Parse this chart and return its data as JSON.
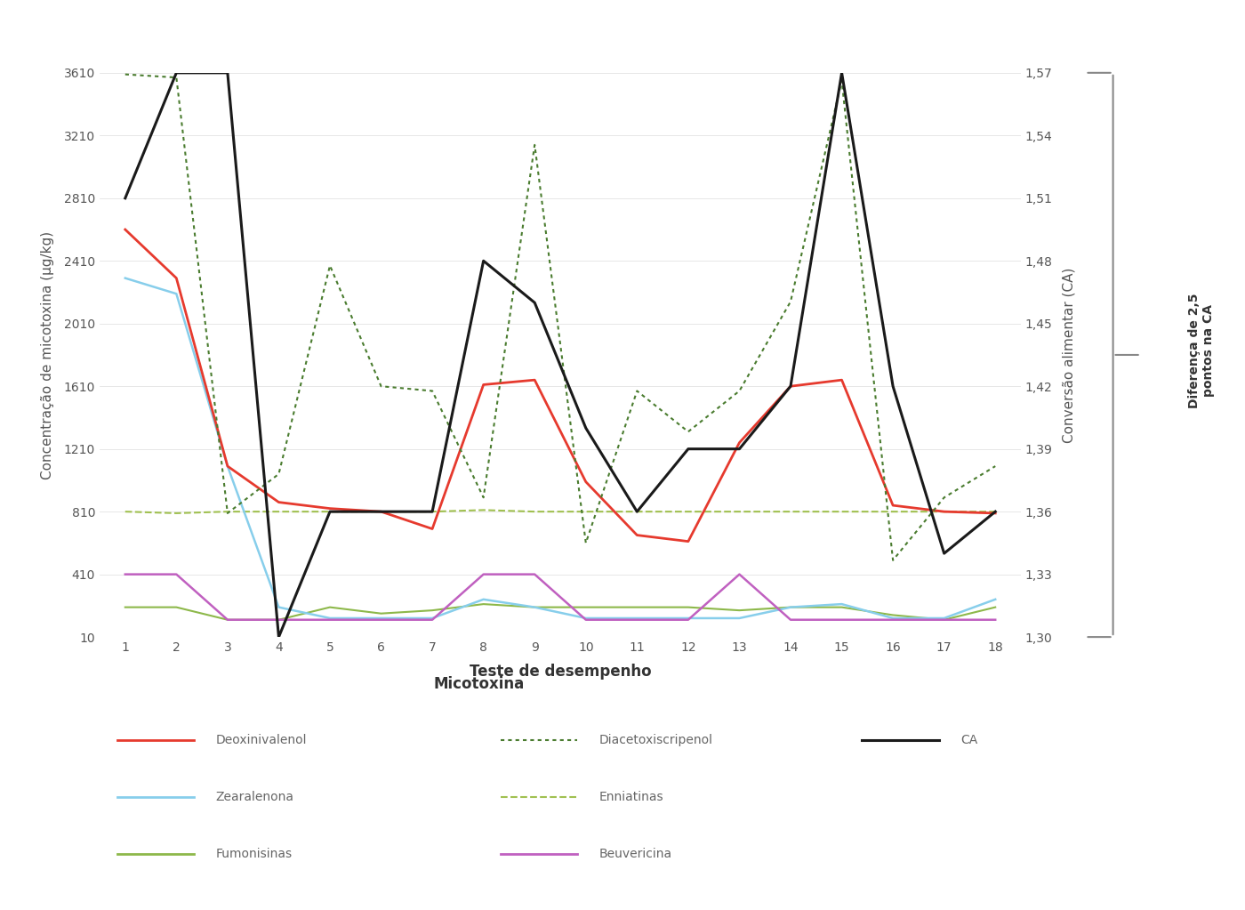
{
  "x": [
    1,
    2,
    3,
    4,
    5,
    6,
    7,
    8,
    9,
    10,
    11,
    12,
    13,
    14,
    15,
    16,
    17,
    18
  ],
  "deoxinivalenol": [
    2610,
    2300,
    1100,
    870,
    830,
    810,
    700,
    1620,
    1650,
    1000,
    660,
    620,
    1250,
    1610,
    1650,
    850,
    810,
    800
  ],
  "zearalenona": [
    2300,
    2200,
    1100,
    200,
    130,
    130,
    130,
    250,
    200,
    130,
    130,
    130,
    130,
    200,
    220,
    130,
    130,
    250
  ],
  "fumonisinas": [
    200,
    200,
    120,
    120,
    200,
    160,
    180,
    220,
    200,
    200,
    200,
    200,
    180,
    200,
    200,
    150,
    120,
    200
  ],
  "diacetoxiscripenol": [
    3600,
    3580,
    800,
    1050,
    2380,
    1610,
    1580,
    900,
    3150,
    610,
    1580,
    1320,
    1580,
    2150,
    3560,
    500,
    900,
    1100
  ],
  "enniatinas": [
    810,
    800,
    810,
    810,
    810,
    810,
    810,
    820,
    810,
    810,
    810,
    810,
    810,
    810,
    810,
    810,
    810,
    810
  ],
  "beuvericina": [
    410,
    410,
    120,
    120,
    120,
    120,
    120,
    410,
    410,
    120,
    120,
    120,
    410,
    120,
    120,
    120,
    120,
    120
  ],
  "CA": [
    1.51,
    1.57,
    1.57,
    1.3,
    1.36,
    1.36,
    1.36,
    1.48,
    1.46,
    1.4,
    1.36,
    1.39,
    1.39,
    1.42,
    1.57,
    1.42,
    1.34,
    1.36
  ],
  "ylim_left": [
    10,
    3610
  ],
  "ylim_right": [
    1.3,
    1.57
  ],
  "yticks_left": [
    10,
    410,
    810,
    1210,
    1610,
    2010,
    2410,
    2810,
    3210,
    3610
  ],
  "yticks_right": [
    1.3,
    1.33,
    1.36,
    1.39,
    1.42,
    1.45,
    1.48,
    1.51,
    1.54,
    1.57
  ],
  "xlabel": "Teste de desempenho",
  "ylabel_left": "Concentração de micotoxina (µg/kg)",
  "ylabel_right": "Conversão alimentar (CA)",
  "legend_title": "Micotoxina",
  "brace_label": "Diferença de 2,5\npontos na CA",
  "color_deoxinivalenol": "#e63a2e",
  "color_zearalenona": "#87ceeb",
  "color_fumonisinas": "#8db84a",
  "color_diacetoxiscripenol": "#4a7c2f",
  "color_enniatinas": "#a0c050",
  "color_beuvericina": "#c060c0",
  "color_CA": "#1a1a1a",
  "background_color": "#ffffff"
}
